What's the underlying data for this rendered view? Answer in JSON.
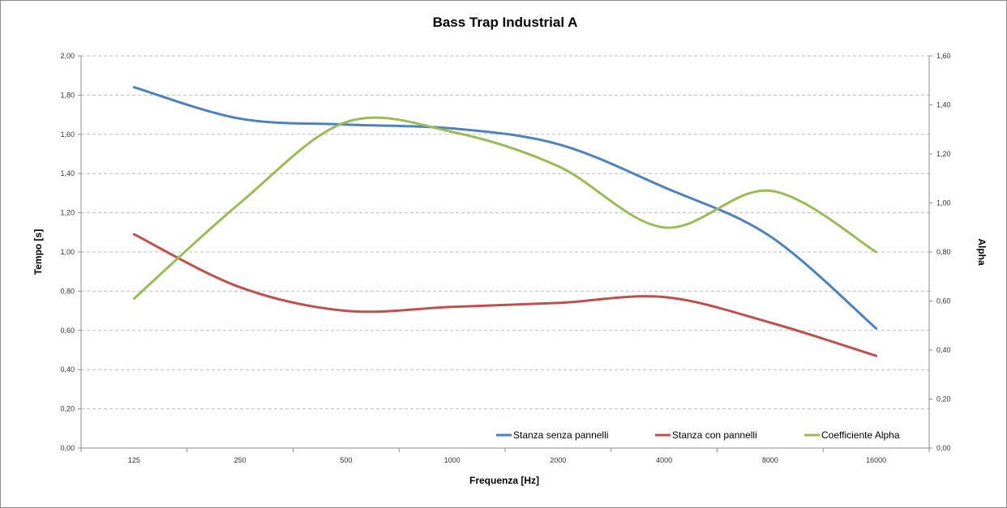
{
  "chart_data": {
    "type": "line",
    "title": "Bass Trap Industrial A",
    "xlabel": "Frequenza [Hz]",
    "ylabel": "Tempo [s]",
    "y2label": "Alpha",
    "categories": [
      "125",
      "250",
      "500",
      "1000",
      "2000",
      "4000",
      "8000",
      "16000"
    ],
    "ylim": [
      0,
      2.0
    ],
    "yticks": [
      "0,00",
      "0,20",
      "0,40",
      "0,60",
      "0,80",
      "1,00",
      "1,20",
      "1,40",
      "1,60",
      "1,80",
      "2,00"
    ],
    "y2lim": [
      0,
      1.6
    ],
    "y2ticks": [
      "0,00",
      "0,20",
      "0,40",
      "0,60",
      "0,80",
      "1,00",
      "1,20",
      "1,40",
      "1,60"
    ],
    "grid": true,
    "legend_position": "bottom-right",
    "series": [
      {
        "name": "Stanza senza pannelli",
        "axis": "left",
        "color": "#4f81bd",
        "values": [
          1.84,
          1.68,
          1.65,
          1.63,
          1.55,
          1.33,
          1.08,
          0.61
        ]
      },
      {
        "name": "Stanza con pannelli",
        "axis": "left",
        "color": "#c0504d",
        "values": [
          1.09,
          0.82,
          0.7,
          0.72,
          0.74,
          0.77,
          0.64,
          0.47
        ]
      },
      {
        "name": "Coefficiente Alpha",
        "axis": "right",
        "color": "#9bbb59",
        "values": [
          0.61,
          1.0,
          1.33,
          1.29,
          1.15,
          0.9,
          1.05,
          0.8
        ]
      }
    ]
  }
}
